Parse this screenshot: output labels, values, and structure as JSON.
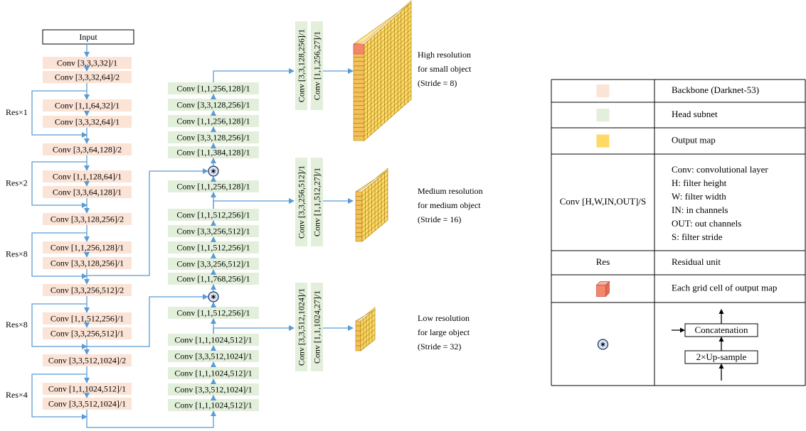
{
  "backbone": {
    "input": "Input",
    "layers": [
      "Conv [3,3,3,32]/1",
      "Conv [3,3,32,64]/2",
      "Conv [1,1,64,32]/1",
      "Conv [3,3,32,64]/1",
      "Conv [3,3,64,128]/2",
      "Conv [1,1,128,64]/1",
      "Conv [3,3,64,128]/1",
      "Conv [3,3,128,256]/2",
      "Conv [1,1,256,128]/1",
      "Conv [3,3,128,256]/1",
      "Conv [3,3,256,512]/2",
      "Conv [1,1,512,256]/1",
      "Conv [3,3,256,512]/1",
      "Conv [3,3,512,1024]/2",
      "Conv [1,1,1024,512]/1",
      "Conv [3,3,512,1024]/1"
    ],
    "residual_labels": [
      "Res×1",
      "Res×2",
      "Res×8",
      "Res×8",
      "Res×4"
    ]
  },
  "head": {
    "scales": [
      {
        "layers": [
          "Conv [1,1,256,128]/1",
          "Conv [3,3,128,256]/1",
          "Conv [1,1,256,128]/1",
          "Conv [3,3,128,256]/1",
          "Conv [1,1,384,128]/1"
        ],
        "outputs": [
          "Conv [3,3,128,256]/1",
          "Conv [1,1,256,27]/1"
        ],
        "description": [
          "High resolution",
          "for small object",
          "(Stride = 8)"
        ]
      },
      {
        "layers": [
          "Conv [1,1,512,256]/1",
          "Conv [3,3,256,512]/1",
          "Conv [1,1,512,256]/1",
          "Conv [3,3,256,512]/1",
          "Conv [1,1,768,256]/1"
        ],
        "outputs": [
          "Conv [3,3,256,512]/1",
          "Conv [1,1,512,27]/1"
        ],
        "description": [
          "Medium resolution",
          "for medium object",
          "(Stride = 16)"
        ]
      },
      {
        "layers": [
          "Conv [1,1,1024,512]/1",
          "Conv [3,3,512,1024]/1",
          "Conv [1,1,1024,512]/1",
          "Conv [3,3,512,1024]/1",
          "Conv [1,1,1024,512]/1"
        ],
        "outputs": [
          "Conv [3,3,512,1024]/1",
          "Conv [1,1,1024,27]/1"
        ],
        "description": [
          "Low resolution",
          "for large object",
          "(Stride = 32)"
        ]
      }
    ],
    "upsample_layers": [
      "Conv [1,1,256,128]/1",
      "Conv [1,1,512,256]/1"
    ]
  },
  "legend": {
    "rows": [
      {
        "description": "Backbone (Darknet-53)"
      },
      {
        "description": "Head subnet"
      },
      {
        "description": "Output map"
      },
      {
        "key": "Conv [H,W,IN,OUT]/S",
        "description": [
          "Conv: convolutional layer",
          "H: filter height",
          "W: filter width",
          "IN: in channels",
          "OUT: out channels",
          "S: filter stride"
        ]
      },
      {
        "key": "Res",
        "description": "Residual unit"
      },
      {
        "description": "Each grid cell of output map"
      },
      {
        "description": [
          "Concatenation",
          "2×Up-sample"
        ]
      }
    ]
  }
}
